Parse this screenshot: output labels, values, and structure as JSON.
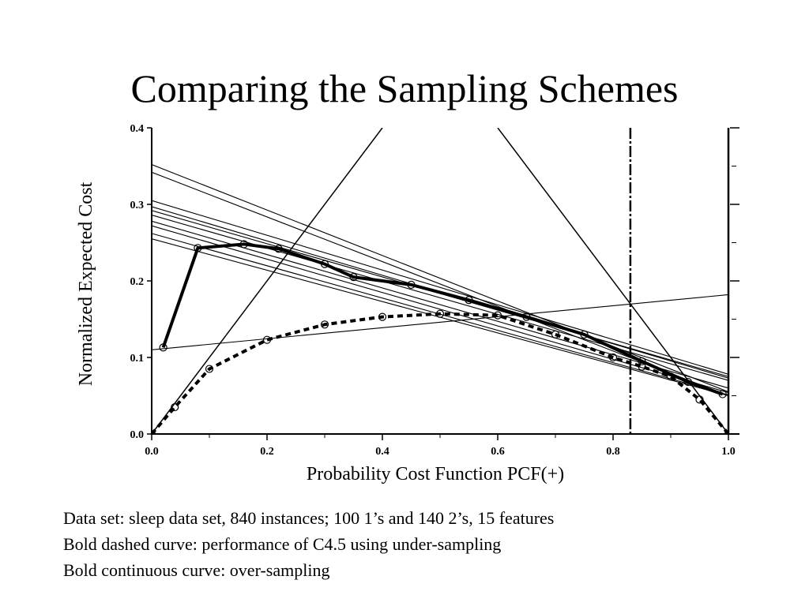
{
  "slide": {
    "title": "Comparing the Sampling Schemes",
    "notes": [
      "Data set: sleep data set, 840 instances; 100 1’s and 140 2’s, 15 features",
      "Bold dashed curve: performance of C4.5 using under-sampling",
      "Bold continuous curve: over-sampling"
    ]
  },
  "chart_data": {
    "type": "line",
    "xlabel": "Probability Cost Function PCF(+)",
    "ylabel": "Normalized Expected Cost",
    "xlim": [
      0,
      1
    ],
    "ylim": [
      0,
      0.4
    ],
    "xticks": [
      "0.0",
      "0.2",
      "0.4",
      "0.6",
      "0.8",
      "1.0"
    ],
    "yticks": [
      "0.0",
      "0.1",
      "0.2",
      "0.3",
      "0.4"
    ],
    "grid": false,
    "reference_lines": [
      {
        "x": [
          0,
          0.4
        ],
        "y": [
          0,
          0.4
        ]
      },
      {
        "x": [
          0.6,
          1.0
        ],
        "y": [
          0.4,
          0.0
        ]
      }
    ],
    "vertical_lines": [
      0.83,
      1.0
    ],
    "cost_lines": [
      {
        "x": [
          0,
          1
        ],
        "y": [
          0.352,
          0.055
        ]
      },
      {
        "x": [
          0,
          1
        ],
        "y": [
          0.342,
          0.05
        ]
      },
      {
        "x": [
          0,
          1
        ],
        "y": [
          0.305,
          0.078
        ]
      },
      {
        "x": [
          0,
          1
        ],
        "y": [
          0.297,
          0.073
        ]
      },
      {
        "x": [
          0,
          1
        ],
        "y": [
          0.292,
          0.075
        ]
      },
      {
        "x": [
          0,
          1
        ],
        "y": [
          0.286,
          0.07
        ]
      },
      {
        "x": [
          0,
          1
        ],
        "y": [
          0.278,
          0.06
        ]
      },
      {
        "x": [
          0,
          1
        ],
        "y": [
          0.272,
          0.054
        ]
      },
      {
        "x": [
          0,
          1
        ],
        "y": [
          0.262,
          0.051
        ]
      },
      {
        "x": [
          0,
          1
        ],
        "y": [
          0.255,
          0.05
        ]
      },
      {
        "x": [
          0,
          1
        ],
        "y": [
          0.11,
          0.182
        ]
      }
    ],
    "series": [
      {
        "style": "dashed",
        "x": [
          0,
          0.04,
          0.1,
          0.2,
          0.3,
          0.4,
          0.5,
          0.6,
          0.7,
          0.8,
          0.85,
          0.9,
          0.95,
          1.0
        ],
        "y": [
          0.0,
          0.035,
          0.085,
          0.123,
          0.143,
          0.153,
          0.157,
          0.155,
          0.13,
          0.1,
          0.088,
          0.075,
          0.045,
          0.0
        ]
      },
      {
        "style": "solid",
        "x": [
          0.02,
          0.08,
          0.16,
          0.22,
          0.3,
          0.35,
          0.45,
          0.55,
          0.65,
          0.75,
          0.85,
          0.93,
          0.99
        ],
        "y": [
          0.113,
          0.243,
          0.248,
          0.242,
          0.222,
          0.205,
          0.195,
          0.175,
          0.153,
          0.13,
          0.095,
          0.068,
          0.052
        ]
      }
    ]
  }
}
